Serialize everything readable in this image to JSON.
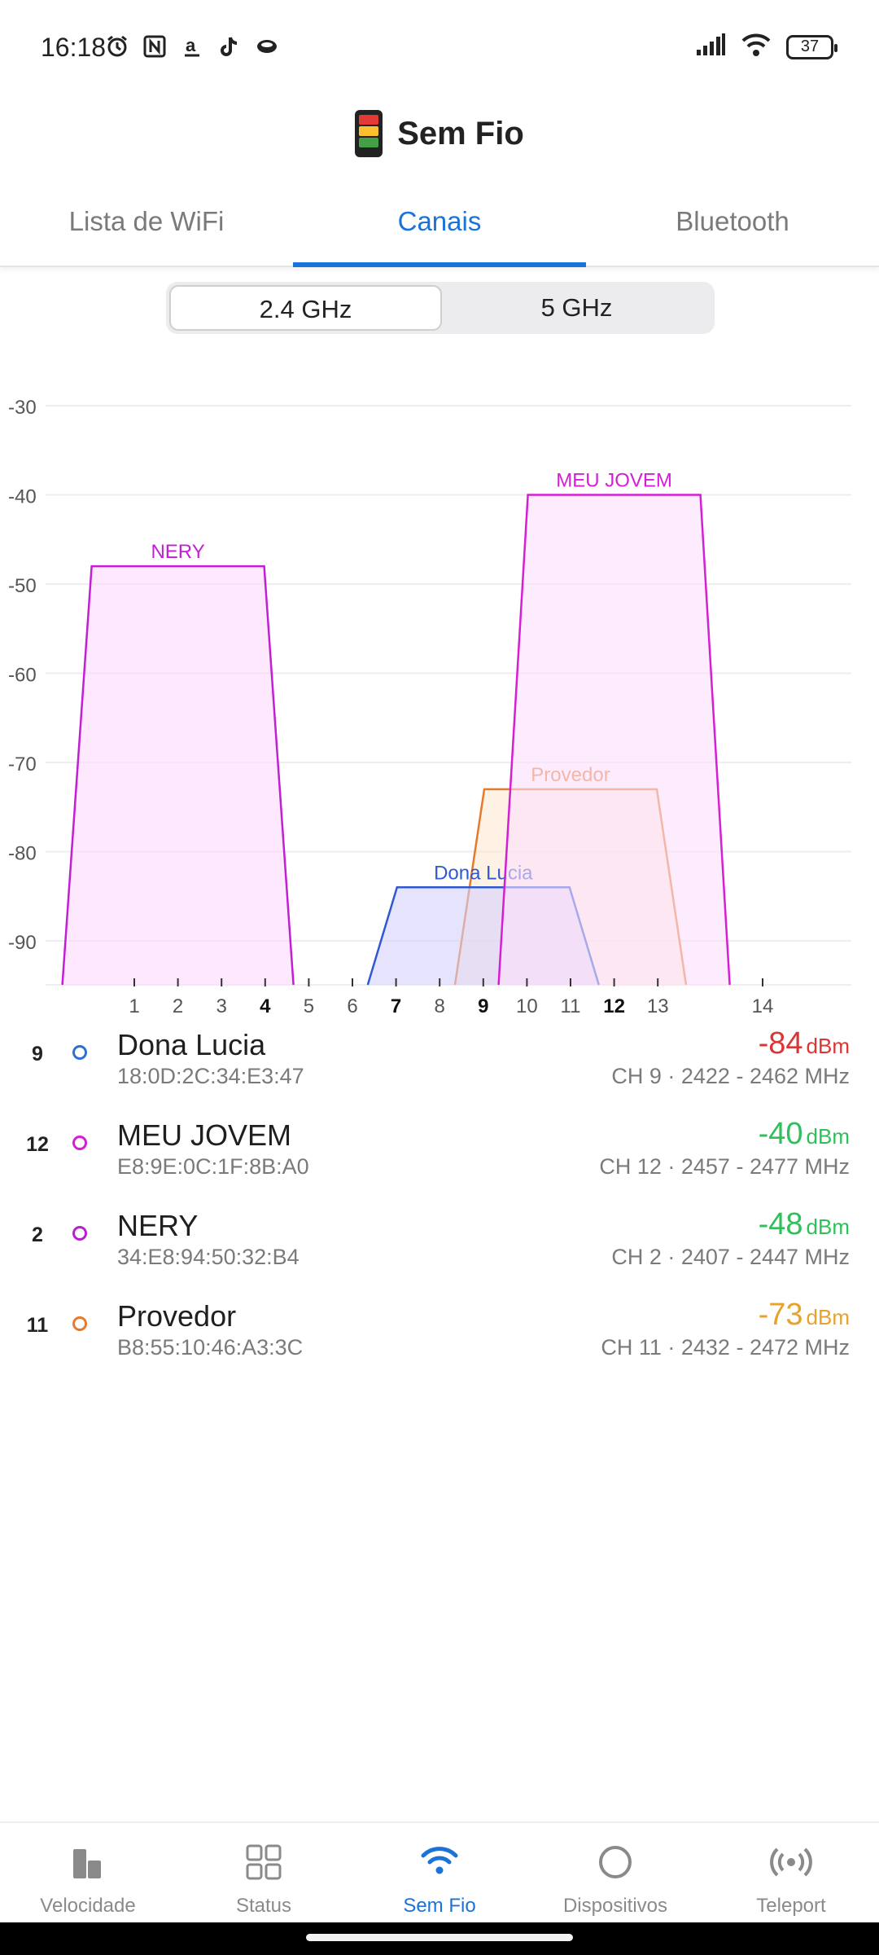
{
  "status_bar": {
    "time": "16:18",
    "left_icons": [
      "alarm-icon",
      "nfc-icon",
      "amazon-icon",
      "tiktok-icon",
      "app-icon"
    ],
    "right_icons": [
      "signal-icon",
      "wifi-icon",
      "battery-icon"
    ],
    "battery": "37"
  },
  "header": {
    "title": "Sem Fio",
    "logo": "app-logo-icon"
  },
  "tabs": [
    {
      "label": "Lista de WiFi",
      "active": false
    },
    {
      "label": "Canais",
      "active": true
    },
    {
      "label": "Bluetooth",
      "active": false
    }
  ],
  "band_selector": {
    "options": [
      "2.4 GHz",
      "5 GHz"
    ],
    "selected": "2.4 GHz"
  },
  "chart_data": {
    "type": "area",
    "ylim": [
      -95,
      -30
    ],
    "y_ticks": [
      "-30",
      "-40",
      "-50",
      "-60",
      "-70",
      "-80",
      "-90"
    ],
    "x_ticks": [
      "1",
      "2",
      "3",
      "4",
      "5",
      "6",
      "7",
      "8",
      "9",
      "10",
      "11",
      "12",
      "13",
      "14"
    ],
    "x_ticks_bold": [
      "4",
      "7",
      "9",
      "12"
    ],
    "grid": true,
    "series": [
      {
        "name": "NERY",
        "channel": 2,
        "value": -48,
        "color": "#c21fd4",
        "fill": "#fbd8fb"
      },
      {
        "name": "Provedor",
        "channel": 11,
        "value": -73,
        "color": "#e8792a",
        "fill": "#fde9d3"
      },
      {
        "name": "Dona Lucia",
        "channel": 9,
        "value": -84,
        "color": "#2f59cf",
        "fill": "#d6d0fb"
      },
      {
        "name": "MEU JOVEM",
        "channel": 12,
        "value": -40,
        "color": "#d41fd4",
        "fill": "#fce0fc"
      }
    ]
  },
  "networks": [
    {
      "channel": "9",
      "name": "Dona Lucia",
      "mac": "18:0D:2C:34:E3:47",
      "signal": "-84",
      "unit": "dBm",
      "signal_color": "#d93636",
      "dot_color": "#2f6fd4",
      "freq": "CH 9 · 2422 - 2462 MHz"
    },
    {
      "channel": "12",
      "name": "MEU JOVEM",
      "mac": "E8:9E:0C:1F:8B:A0",
      "signal": "-40",
      "unit": "dBm",
      "signal_color": "#2fbf5b",
      "dot_color": "#d41fd4",
      "freq": "CH 12 · 2457 - 2477 MHz"
    },
    {
      "channel": "2",
      "name": "NERY",
      "mac": "34:E8:94:50:32:B4",
      "signal": "-48",
      "unit": "dBm",
      "signal_color": "#2fbf5b",
      "dot_color": "#b81fcf",
      "freq": "CH 2 · 2407 - 2447 MHz"
    },
    {
      "channel": "11",
      "name": "Provedor",
      "mac": "B8:55:10:46:A3:3C",
      "signal": "-73",
      "unit": "dBm",
      "signal_color": "#e8a22a",
      "dot_color": "#e8792a",
      "freq": "CH 11 · 2432 - 2472 MHz"
    }
  ],
  "bottom_nav": [
    {
      "label": "Velocidade",
      "icon": "speed-bars-icon",
      "active": false
    },
    {
      "label": "Status",
      "icon": "grid-icon",
      "active": false
    },
    {
      "label": "Sem Fio",
      "icon": "wifi-icon",
      "active": true
    },
    {
      "label": "Dispositivos",
      "icon": "circle-icon",
      "active": false
    },
    {
      "label": "Teleport",
      "icon": "teleport-icon",
      "active": false
    }
  ]
}
